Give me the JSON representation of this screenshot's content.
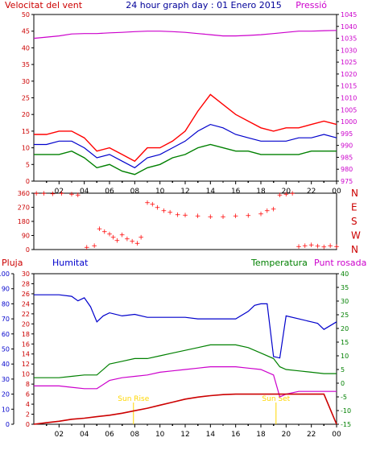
{
  "title": "24 hour graph day : 01 Enero 2015",
  "colors": {
    "wind_red": "#ff0000",
    "wind_avg": "#0000cc",
    "wind_green": "#008000",
    "pressure": "#cc00cc",
    "rain": "#cc0000",
    "humidity": "#0000cc",
    "temperature": "#008000",
    "dewpoint": "#cc00cc",
    "marker": "#ffd700"
  },
  "chart_data": [
    {
      "type": "line",
      "name": "wind-pressure",
      "title_left": "Velocitat del vent",
      "title_right": "Pressió",
      "ylim_left": [
        0,
        50
      ],
      "yticks_left": [
        "0",
        "5",
        "10",
        "15",
        "20",
        "25",
        "30",
        "35",
        "40",
        "45",
        "50"
      ],
      "ylim_right": [
        975,
        1045
      ],
      "yticks_right": [
        "975",
        "980",
        "985",
        "990",
        "995",
        "1000",
        "1005",
        "1010",
        "1015",
        "1020",
        "1025",
        "1030",
        "1035",
        "1040",
        "1045"
      ],
      "x_ticks": [
        "02",
        "04",
        "06",
        "08",
        "10",
        "12",
        "14",
        "16",
        "18",
        "20",
        "22",
        "00"
      ],
      "series": [
        {
          "name": "gust",
          "color": "#ff0000",
          "x": [
            0,
            1,
            2,
            3,
            4,
            5,
            6,
            7,
            8,
            9,
            10,
            11,
            12,
            13,
            14,
            15,
            16,
            17,
            18,
            19,
            20,
            21,
            22,
            23,
            24
          ],
          "y": [
            14,
            14,
            15,
            15,
            13,
            9,
            10,
            8,
            6,
            10,
            10,
            12,
            15,
            21,
            26,
            23,
            20,
            18,
            16,
            15,
            16,
            16,
            17,
            18,
            17
          ]
        },
        {
          "name": "average",
          "color": "#0000cc",
          "x": [
            0,
            1,
            2,
            3,
            4,
            5,
            6,
            7,
            8,
            9,
            10,
            11,
            12,
            13,
            14,
            15,
            16,
            17,
            18,
            19,
            20,
            21,
            22,
            23,
            24
          ],
          "y": [
            11,
            11,
            12,
            12,
            10,
            7,
            8,
            6,
            4,
            7,
            8,
            10,
            12,
            15,
            17,
            16,
            14,
            13,
            12,
            12,
            12,
            13,
            13,
            14,
            13
          ]
        },
        {
          "name": "minimum",
          "color": "#008000",
          "x": [
            0,
            1,
            2,
            3,
            4,
            5,
            6,
            7,
            8,
            9,
            10,
            11,
            12,
            13,
            14,
            15,
            16,
            17,
            18,
            19,
            20,
            21,
            22,
            23,
            24
          ],
          "y": [
            8,
            8,
            8,
            9,
            7,
            4,
            5,
            3,
            2,
            4,
            5,
            7,
            8,
            10,
            11,
            10,
            9,
            9,
            8,
            8,
            8,
            8,
            9,
            9,
            9
          ]
        },
        {
          "name": "pressure",
          "color": "#cc00cc",
          "x": [
            0,
            1,
            2,
            3,
            4,
            5,
            6,
            7,
            8,
            9,
            10,
            11,
            12,
            13,
            14,
            15,
            16,
            17,
            18,
            19,
            20,
            21,
            22,
            23,
            24
          ],
          "y": [
            1035,
            1035.5,
            1036,
            1036.8,
            1037,
            1037,
            1037.3,
            1037.5,
            1037.8,
            1038,
            1038,
            1037.8,
            1037.5,
            1037,
            1036.5,
            1036,
            1036,
            1036.2,
            1036.5,
            1037,
            1037.5,
            1038,
            1038,
            1038.2,
            1038.3
          ]
        }
      ]
    },
    {
      "type": "scatter",
      "name": "wind-direction",
      "ylim": [
        0,
        360
      ],
      "yticks": [
        "0",
        "90",
        "180",
        "270",
        "360"
      ],
      "dir_labels": [
        "N",
        "W",
        "S",
        "E",
        "N"
      ],
      "series": [
        {
          "name": "direction",
          "color": "#ff0000",
          "x": [
            0.2,
            0.8,
            1.5,
            2.2,
            3,
            3.5,
            4.2,
            4.8,
            5.2,
            5.6,
            6,
            6.3,
            6.6,
            7,
            7.4,
            7.8,
            8.2,
            8.5,
            9,
            9.4,
            9.8,
            10.3,
            10.8,
            11.4,
            12,
            13,
            14,
            15,
            16,
            17,
            18,
            18.5,
            19,
            19.5,
            20,
            20.5,
            21,
            21.5,
            22,
            22.5,
            23,
            23.5,
            24
          ],
          "y": [
            360,
            360,
            358,
            360,
            355,
            350,
            15,
            25,
            135,
            115,
            100,
            80,
            60,
            95,
            70,
            55,
            40,
            80,
            300,
            290,
            270,
            250,
            240,
            225,
            220,
            215,
            210,
            212,
            215,
            218,
            230,
            250,
            260,
            350,
            355,
            360,
            20,
            25,
            30,
            22,
            18,
            25,
            20
          ]
        }
      ]
    },
    {
      "type": "line",
      "name": "humidity-temp",
      "title_left_outer": "Pluja",
      "title_left_inner": "Humitat",
      "title_right_inner": "Temperatura",
      "title_right_outer": "Punt rosada",
      "yticks_humidity": [
        "0",
        "10",
        "20",
        "30",
        "40",
        "50",
        "60",
        "70",
        "80",
        "90",
        "100"
      ],
      "yticks_rain": [
        "0",
        "2",
        "4",
        "6",
        "8",
        "10",
        "12",
        "14",
        "16",
        "18",
        "20",
        "22",
        "24",
        "26",
        "28",
        "30"
      ],
      "yticks_temp": [
        "-15",
        "-10",
        "-5",
        "0",
        "5",
        "10",
        "15",
        "20",
        "25",
        "30",
        "35",
        "40"
      ],
      "ylim_humidity": [
        0,
        100
      ],
      "ylim_rain": [
        0,
        30
      ],
      "ylim_temp": [
        -15,
        40
      ],
      "x_ticks": [
        "02",
        "04",
        "06",
        "08",
        "10",
        "12",
        "14",
        "16",
        "18",
        "20",
        "22",
        "00"
      ],
      "annotations": [
        "Sun Rise",
        "Sun Set"
      ],
      "series": [
        {
          "name": "humidity",
          "color": "#0000cc",
          "x": [
            0,
            1,
            2,
            3,
            3.5,
            4,
            4.5,
            5,
            5.5,
            6,
            7,
            8,
            9,
            10,
            11,
            12,
            13,
            14,
            15,
            16,
            17,
            17.5,
            18,
            18.5,
            19,
            19.5,
            20,
            21,
            22,
            22.5,
            23,
            24
          ],
          "y": [
            86,
            86,
            86,
            85,
            82,
            84,
            78,
            68,
            72,
            74,
            72,
            73,
            71,
            71,
            71,
            71,
            70,
            70,
            70,
            70,
            75,
            79,
            80,
            80,
            45,
            44,
            72,
            70,
            68,
            67,
            63,
            68
          ]
        },
        {
          "name": "temperature",
          "color": "#008000",
          "x": [
            0,
            1,
            2,
            3,
            4,
            5,
            6,
            7,
            8,
            9,
            10,
            11,
            12,
            13,
            14,
            15,
            16,
            17,
            18,
            19,
            19.5,
            20,
            21,
            22,
            23,
            24
          ],
          "y": [
            2,
            2,
            2,
            2.5,
            3,
            3,
            7,
            8,
            9,
            9,
            10,
            11,
            12,
            13,
            14,
            14,
            14,
            13,
            11,
            9,
            6,
            5,
            4.5,
            4,
            3.5,
            3.5
          ]
        },
        {
          "name": "dewpoint",
          "color": "#cc00cc",
          "x": [
            0,
            1,
            2,
            3,
            4,
            5,
            6,
            7,
            8,
            9,
            10,
            11,
            12,
            13,
            14,
            15,
            16,
            17,
            18,
            19,
            19.5,
            20,
            21,
            22,
            23,
            24
          ],
          "y": [
            -1,
            -1,
            -1,
            -1.5,
            -2,
            -2,
            1,
            2,
            2.5,
            3,
            4,
            4.5,
            5,
            5.5,
            6,
            6,
            6,
            5.5,
            5,
            3,
            -5,
            -4,
            -3,
            -3,
            -3,
            -3
          ]
        },
        {
          "name": "rain",
          "color": "#cc0000",
          "x": [
            0,
            1,
            2,
            3,
            4,
            5,
            6,
            7,
            8,
            9,
            10,
            11,
            12,
            13,
            14,
            15,
            16,
            17,
            18,
            19,
            20,
            21,
            22,
            23,
            24
          ],
          "y": [
            0,
            0.3,
            0.6,
            1,
            1.2,
            1.5,
            1.8,
            2.2,
            2.7,
            3.2,
            3.8,
            4.4,
            5,
            5.4,
            5.7,
            5.9,
            6,
            6,
            6,
            6,
            6,
            6,
            6,
            6,
            0
          ]
        }
      ]
    }
  ]
}
